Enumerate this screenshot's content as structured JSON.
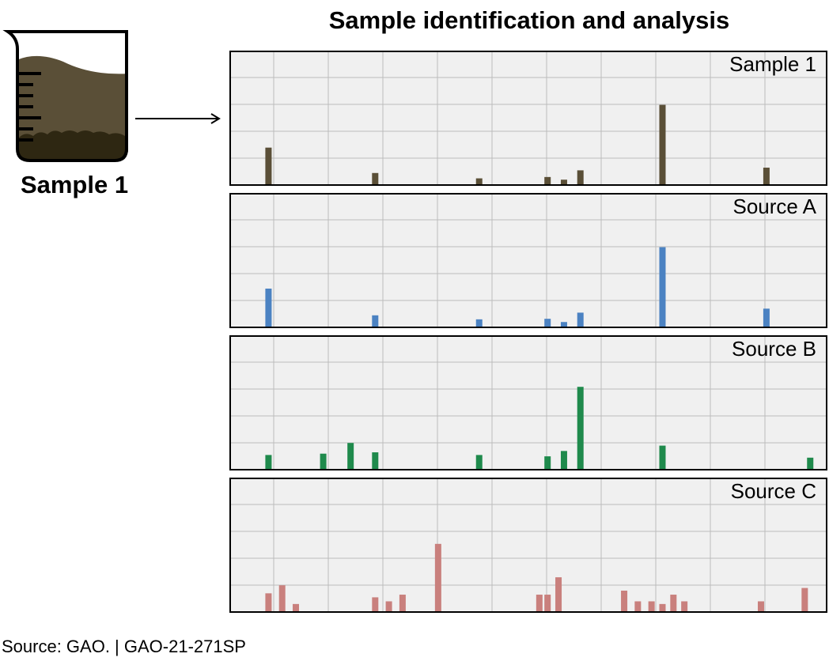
{
  "title": "Sample identification and analysis",
  "sample_label": "Sample 1",
  "source_line": "Source: GAO.  |  GAO-21-271SP",
  "colors": {
    "sample": "#5a4f37",
    "source_a": "#4b82c2",
    "source_b": "#1f8a4c",
    "source_c": "#c9807d",
    "beaker_liquid": "#5a4f37",
    "beaker_sediment": "#2e2712",
    "panel_bg": "#f0f0f0",
    "grid": "#bcbcbc"
  },
  "chart_data": [
    {
      "type": "bar",
      "title": "Sample 1",
      "ylim": [
        0,
        5
      ],
      "xlim": [
        0,
        109
      ],
      "grid": true,
      "x": [
        7,
        26.5,
        45.5,
        58,
        61,
        64,
        79,
        98
      ],
      "values": [
        1.4,
        0.45,
        0.25,
        0.3,
        0.2,
        0.55,
        3.0,
        0.65
      ]
    },
    {
      "type": "bar",
      "title": "Source A",
      "ylim": [
        0,
        5
      ],
      "xlim": [
        0,
        109
      ],
      "grid": true,
      "x": [
        7,
        26.5,
        45.5,
        58,
        61,
        64,
        79,
        98
      ],
      "values": [
        1.45,
        0.45,
        0.3,
        0.32,
        0.2,
        0.55,
        3.0,
        0.7
      ]
    },
    {
      "type": "bar",
      "title": "Source B",
      "ylim": [
        0,
        5
      ],
      "xlim": [
        0,
        109
      ],
      "grid": true,
      "x": [
        7,
        17,
        22,
        26.5,
        45.5,
        58,
        61,
        64,
        79,
        106
      ],
      "values": [
        0.55,
        0.6,
        1.0,
        0.65,
        0.55,
        0.5,
        0.7,
        3.1,
        0.9,
        0.45
      ]
    },
    {
      "type": "bar",
      "title": "Source C",
      "ylim": [
        0,
        5
      ],
      "xlim": [
        0,
        109
      ],
      "grid": true,
      "x": [
        7,
        9.5,
        12,
        26.5,
        29,
        31.5,
        38,
        56.5,
        58,
        60,
        72,
        74.5,
        77,
        79,
        81,
        83,
        97,
        105
      ],
      "values": [
        0.7,
        1.0,
        0.3,
        0.55,
        0.4,
        0.65,
        2.55,
        0.65,
        0.65,
        1.3,
        0.8,
        0.4,
        0.4,
        0.3,
        0.65,
        0.4,
        0.4,
        0.9
      ]
    }
  ]
}
